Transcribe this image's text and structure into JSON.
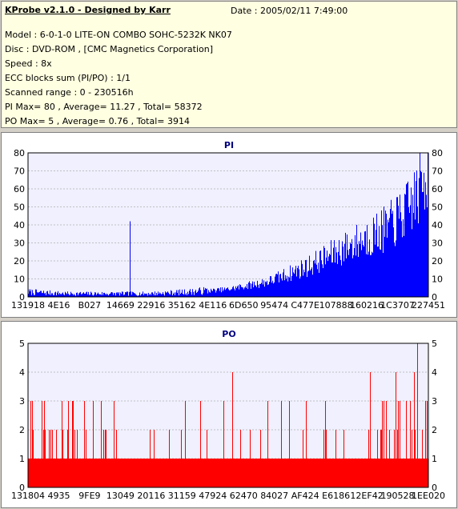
{
  "info": {
    "title": "KProbe v2.1.0 - Designed by Karr",
    "date": "Date : 2005/02/11 7:49:00",
    "lines": [
      "Model : 6-0-1-0 LITE-ON COMBO SOHC-5232K NK07",
      "Disc : DVD-ROM ,  [CMC Magnetics Corporation]",
      "Speed : 8x",
      "ECC blocks sum (PI/PO) : 1/1",
      "Scanned range : 0 - 230516h",
      "PI Max= 80 , Average= 11.27 , Total= 58372",
      "PO Max= 5 , Average= 0.76 , Total= 3914"
    ]
  },
  "colors": {
    "pi_bar": "#0000ff",
    "po_bar": "#ff0000",
    "plot_bg": "#f0f0ff",
    "grid": "#c0c0c0",
    "title": "#000080"
  },
  "chart_data": [
    {
      "type": "bar",
      "title": "PI",
      "yticks": [
        0,
        10,
        20,
        30,
        40,
        50,
        60,
        70,
        80
      ],
      "ylim": [
        0,
        80
      ],
      "xtick_labels": [
        "131918",
        "4E16",
        "B027",
        "14669",
        "22916",
        "35162",
        "4E116",
        "6D650",
        "95474",
        "C477E",
        "107888",
        "160216",
        "1C3707",
        "227451"
      ],
      "grid": true,
      "profile_x": [
        0,
        0.1,
        0.2,
        0.3,
        0.4,
        0.5,
        0.6,
        0.7,
        0.8,
        0.9,
        0.95,
        1.0
      ],
      "profile_y": [
        3,
        2,
        2,
        2,
        3,
        5,
        10,
        20,
        33,
        45,
        57,
        80
      ],
      "spike": {
        "x": 0.255,
        "y": 42
      }
    },
    {
      "type": "bar",
      "title": "PO",
      "yticks": [
        0,
        1,
        2,
        3,
        4,
        5
      ],
      "ylim": [
        0,
        5
      ],
      "xtick_labels": [
        "131804",
        "4935",
        "9FE9",
        "13049",
        "20116",
        "31159",
        "47924",
        "62470",
        "84027",
        "AF424",
        "E6186",
        "12EF42",
        "190528",
        "1EE020"
      ],
      "grid": true,
      "baseline": 1,
      "max": 5
    }
  ]
}
